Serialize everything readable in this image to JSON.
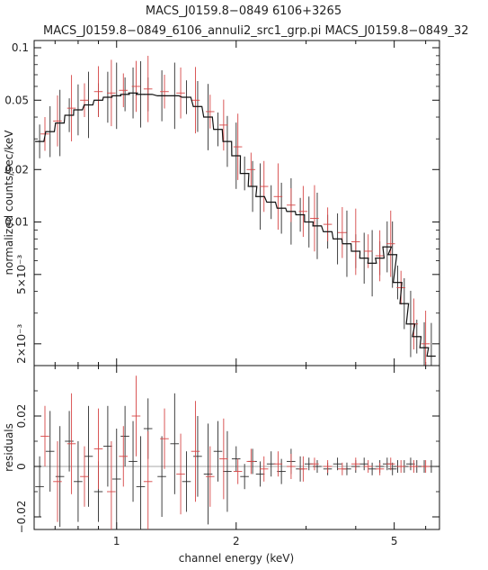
{
  "title": "MACS_J0159.8−0849 6106+3265",
  "subtitle": "MACS_J0159.8−0849_6106_annuli2_src1_grp.pi MACS_J0159.8−0849_32",
  "chart_data": [
    {
      "type": "scatter",
      "panel": "spectrum",
      "ylabel": "normalized counts/sec/keV",
      "xscale": "log",
      "yscale": "log",
      "xlim": [
        0.62,
        6.5
      ],
      "ylim": [
        0.0015,
        0.11
      ],
      "ytick_labels": [
        "0.1",
        "0.05",
        "0.02",
        "0.01",
        "5×10⁻³",
        "2×10⁻³"
      ],
      "ytick_values": [
        0.1,
        0.05,
        0.02,
        0.01,
        0.005,
        0.002
      ],
      "series": [
        {
          "color": "#2b2b2b",
          "x": [
            0.64,
            0.68,
            0.72,
            0.76,
            0.8,
            0.85,
            0.9,
            0.95,
            1.0,
            1.05,
            1.1,
            1.15,
            1.2,
            1.3,
            1.4,
            1.5,
            1.6,
            1.7,
            1.8,
            1.9,
            2.0,
            2.1,
            2.2,
            2.3,
            2.45,
            2.6,
            2.75,
            2.9,
            3.05,
            3.2,
            3.4,
            3.6,
            3.8,
            4.0,
            4.2,
            4.4,
            4.6,
            4.8,
            4.95,
            5.1,
            5.3,
            5.5,
            5.7,
            5.95,
            6.2
          ],
          "y": [
            0.029,
            0.033,
            0.037,
            0.041,
            0.044,
            0.047,
            0.05,
            0.052,
            0.053,
            0.054,
            0.055,
            0.054,
            0.054,
            0.053,
            0.053,
            0.052,
            0.046,
            0.04,
            0.034,
            0.029,
            0.024,
            0.019,
            0.016,
            0.014,
            0.013,
            0.012,
            0.0115,
            0.011,
            0.01,
            0.0095,
            0.0088,
            0.008,
            0.0075,
            0.0068,
            0.0062,
            0.0058,
            0.0062,
            0.0072,
            0.0065,
            0.0045,
            0.0034,
            0.0026,
            0.0022,
            0.0019,
            0.0017
          ]
        },
        {
          "color": "#d64545",
          "x": [
            0.66,
            0.71,
            0.77,
            0.83,
            0.9,
            0.97,
            1.04,
            1.12,
            1.2,
            1.32,
            1.45,
            1.58,
            1.72,
            1.86,
            2.02,
            2.18,
            2.35,
            2.55,
            2.75,
            2.95,
            3.15,
            3.4,
            3.7,
            4.0,
            4.3,
            4.6,
            4.9,
            5.2,
            5.6,
            6.0
          ],
          "y": [
            0.032,
            0.038,
            0.045,
            0.05,
            0.056,
            0.055,
            0.057,
            0.06,
            0.058,
            0.056,
            0.055,
            0.05,
            0.043,
            0.036,
            0.027,
            0.02,
            0.016,
            0.014,
            0.0125,
            0.0115,
            0.0105,
            0.0097,
            0.0087,
            0.0077,
            0.0068,
            0.0064,
            0.0075,
            0.0042,
            0.0026,
            0.002
          ]
        }
      ]
    },
    {
      "type": "scatter",
      "panel": "residuals",
      "ylabel": "residuals",
      "xlabel": "channel energy (keV)",
      "xscale": "log",
      "xlim": [
        0.62,
        6.5
      ],
      "ylim": [
        -0.025,
        0.04
      ],
      "ytick_labels": [
        "0.02",
        "0",
        "−0.02"
      ],
      "ytick_values": [
        0.02,
        0,
        -0.02
      ],
      "xtick_labels": [
        "1",
        "2",
        "5"
      ],
      "xtick_values": [
        1,
        2,
        5
      ],
      "series": [
        {
          "color": "#2b2b2b",
          "x": [
            0.64,
            0.68,
            0.72,
            0.76,
            0.8,
            0.85,
            0.9,
            0.95,
            1.0,
            1.05,
            1.1,
            1.15,
            1.2,
            1.3,
            1.4,
            1.5,
            1.6,
            1.7,
            1.8,
            1.9,
            2.0,
            2.1,
            2.2,
            2.3,
            2.45,
            2.6,
            2.75,
            2.9,
            3.05,
            3.2,
            3.4,
            3.6,
            3.8,
            4.0,
            4.2,
            4.4,
            4.6,
            4.8,
            4.95,
            5.1,
            5.3,
            5.5,
            5.7,
            5.95,
            6.2
          ],
          "y": [
            -0.008,
            0.006,
            -0.004,
            0.01,
            -0.006,
            0.004,
            -0.01,
            0.008,
            -0.005,
            0.012,
            0.002,
            -0.008,
            0.015,
            -0.004,
            0.009,
            -0.006,
            0.004,
            -0.003,
            0.006,
            -0.002,
            0.003,
            -0.004,
            0.002,
            -0.003,
            0.001,
            -0.002,
            0.002,
            -0.001,
            0.001,
            0.0,
            -0.001,
            0.001,
            -0.001,
            0.0,
            0.001,
            -0.001,
            0.0,
            0.001,
            -0.001,
            0.0,
            0.0,
            0.001,
            0.0,
            0.0,
            0.0
          ]
        },
        {
          "color": "#d64545",
          "x": [
            0.66,
            0.71,
            0.77,
            0.83,
            0.9,
            0.97,
            1.04,
            1.12,
            1.2,
            1.32,
            1.45,
            1.58,
            1.72,
            1.86,
            2.02,
            2.18,
            2.35,
            2.55,
            2.75,
            2.95,
            3.15,
            3.4,
            3.7,
            4.0,
            4.3,
            4.6,
            4.9,
            5.2,
            5.6,
            6.0
          ],
          "y": [
            0.012,
            -0.006,
            0.009,
            -0.004,
            0.007,
            -0.01,
            0.004,
            0.02,
            -0.006,
            0.011,
            -0.003,
            0.006,
            -0.004,
            0.003,
            -0.002,
            0.002,
            -0.001,
            0.001,
            0.0,
            -0.001,
            0.001,
            0.0,
            -0.001,
            0.001,
            0.0,
            -0.001,
            0.001,
            0.0,
            0.0,
            0.0
          ]
        }
      ]
    }
  ]
}
